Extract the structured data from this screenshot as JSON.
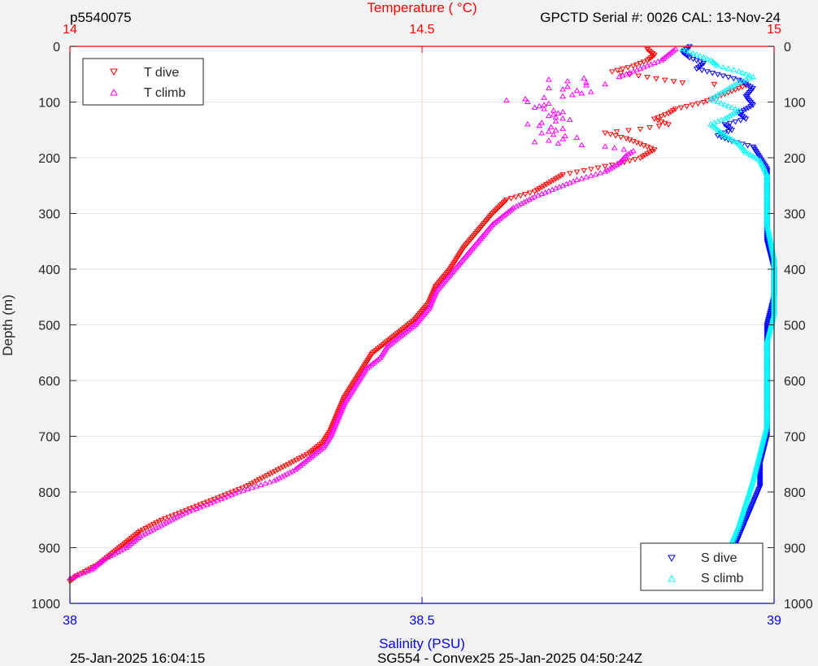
{
  "header": {
    "left": "p5540075",
    "right": "GPCTD Serial #: 0026 CAL: 13-Nov-24"
  },
  "footer": {
    "left": "25-Jan-2025 16:04:15",
    "center": "SG554 - Convex25 25-Jan-2025 04:50:24Z"
  },
  "chart_data": {
    "type": "scatter",
    "ylabel": "Depth (m)",
    "ylim": [
      0,
      1000
    ],
    "yticks": [
      "0",
      "100",
      "200",
      "300",
      "400",
      "500",
      "600",
      "700",
      "800",
      "900",
      "1000"
    ],
    "y_reversed": true,
    "temperature_axis": {
      "label": "Temperature (    °C)",
      "position": "top",
      "color": "#ff0000",
      "lim": [
        14,
        15
      ],
      "ticks": [
        "14",
        "14.5",
        "15"
      ]
    },
    "salinity_axis": {
      "label": "Salinity (PSU)",
      "position": "bottom",
      "color": "#0000ff",
      "lim": [
        38,
        39
      ],
      "ticks": [
        "38",
        "38.5",
        "39"
      ]
    },
    "grid": true,
    "legend_temperature": {
      "placement": "top-left",
      "entries": [
        "T dive",
        "T climb"
      ]
    },
    "legend_salinity": {
      "placement": "bottom-right",
      "entries": [
        "S dive",
        "S climb"
      ]
    },
    "series": [
      {
        "name": "T dive",
        "axis": "temperature",
        "marker": "triangle-down",
        "color": "#ff0000",
        "points": [
          [
            14.82,
            5
          ],
          [
            14.83,
            15
          ],
          [
            14.82,
            25
          ],
          [
            14.8,
            35
          ],
          [
            14.77,
            45
          ],
          [
            14.82,
            55
          ],
          [
            14.87,
            65
          ],
          [
            14.96,
            70
          ],
          [
            14.93,
            85
          ],
          [
            14.9,
            100
          ],
          [
            14.86,
            112
          ],
          [
            14.85,
            120
          ],
          [
            14.83,
            130
          ],
          [
            14.85,
            140
          ],
          [
            14.81,
            148
          ],
          [
            14.76,
            155
          ],
          [
            14.79,
            165
          ],
          [
            14.81,
            175
          ],
          [
            14.83,
            185
          ],
          [
            14.81,
            200
          ],
          [
            14.78,
            210
          ],
          [
            14.74,
            220
          ],
          [
            14.7,
            230
          ],
          [
            14.68,
            245
          ],
          [
            14.66,
            260
          ],
          [
            14.62,
            275
          ],
          [
            14.6,
            300
          ],
          [
            14.58,
            330
          ],
          [
            14.56,
            360
          ],
          [
            14.54,
            400
          ],
          [
            14.52,
            430
          ],
          [
            14.51,
            460
          ],
          [
            14.49,
            490
          ],
          [
            14.47,
            510
          ],
          [
            14.45,
            530
          ],
          [
            14.43,
            550
          ],
          [
            14.42,
            570
          ],
          [
            14.41,
            590
          ],
          [
            14.4,
            610
          ],
          [
            14.39,
            630
          ],
          [
            14.38,
            660
          ],
          [
            14.37,
            690
          ],
          [
            14.36,
            710
          ],
          [
            14.34,
            730
          ],
          [
            14.31,
            750
          ],
          [
            14.28,
            770
          ],
          [
            14.25,
            790
          ],
          [
            14.21,
            810
          ],
          [
            14.17,
            830
          ],
          [
            14.13,
            850
          ],
          [
            14.1,
            870
          ],
          [
            14.08,
            890
          ],
          [
            14.06,
            910
          ],
          [
            14.04,
            930
          ],
          [
            14.01,
            950
          ],
          [
            14.0,
            960
          ],
          [
            13.99,
            965
          ]
        ]
      },
      {
        "name": "T climb",
        "axis": "temperature",
        "marker": "triangle-up",
        "color": "#ff00ff",
        "points": [
          [
            14.86,
            5
          ],
          [
            14.85,
            15
          ],
          [
            14.84,
            25
          ],
          [
            14.82,
            35
          ],
          [
            14.8,
            45
          ],
          [
            14.78,
            55
          ],
          [
            14.68,
            60
          ],
          [
            14.76,
            68
          ],
          [
            14.68,
            75
          ],
          [
            14.74,
            82
          ],
          [
            14.7,
            90
          ],
          [
            14.62,
            97
          ],
          [
            14.68,
            103
          ],
          [
            14.66,
            110
          ],
          [
            14.7,
            118
          ],
          [
            14.68,
            125
          ],
          [
            14.71,
            132
          ],
          [
            14.65,
            140
          ],
          [
            14.7,
            148
          ],
          [
            14.67,
            156
          ],
          [
            14.72,
            164
          ],
          [
            14.66,
            172
          ],
          [
            14.76,
            180
          ],
          [
            14.8,
            188
          ],
          [
            14.79,
            196
          ],
          [
            14.78,
            210
          ],
          [
            14.76,
            225
          ],
          [
            14.72,
            240
          ],
          [
            14.69,
            255
          ],
          [
            14.66,
            270
          ],
          [
            14.63,
            290
          ],
          [
            14.6,
            320
          ],
          [
            14.58,
            350
          ],
          [
            14.56,
            380
          ],
          [
            14.54,
            410
          ],
          [
            14.52,
            440
          ],
          [
            14.51,
            470
          ],
          [
            14.49,
            500
          ],
          [
            14.47,
            520
          ],
          [
            14.45,
            540
          ],
          [
            14.44,
            560
          ],
          [
            14.42,
            580
          ],
          [
            14.41,
            600
          ],
          [
            14.4,
            620
          ],
          [
            14.39,
            640
          ],
          [
            14.38,
            670
          ],
          [
            14.37,
            700
          ],
          [
            14.36,
            720
          ],
          [
            14.34,
            740
          ],
          [
            14.32,
            760
          ],
          [
            14.29,
            780
          ],
          [
            14.24,
            800
          ],
          [
            14.2,
            820
          ],
          [
            14.16,
            840
          ],
          [
            14.13,
            860
          ],
          [
            14.1,
            880
          ],
          [
            14.08,
            900
          ],
          [
            14.05,
            920
          ],
          [
            14.03,
            940
          ],
          [
            14.0,
            955
          ],
          [
            13.99,
            963
          ]
        ]
      },
      {
        "name": "S dive",
        "axis": "salinity",
        "marker": "triangle-down",
        "color": "#0000ff",
        "points": [
          [
            38.88,
            0
          ],
          [
            38.87,
            10
          ],
          [
            38.88,
            20
          ],
          [
            38.9,
            30
          ],
          [
            38.89,
            40
          ],
          [
            38.92,
            50
          ],
          [
            38.95,
            60
          ],
          [
            38.97,
            75
          ],
          [
            38.96,
            90
          ],
          [
            38.97,
            105
          ],
          [
            38.95,
            120
          ],
          [
            38.96,
            130
          ],
          [
            38.93,
            140
          ],
          [
            38.94,
            150
          ],
          [
            38.92,
            160
          ],
          [
            38.94,
            170
          ],
          [
            38.97,
            180
          ],
          [
            38.98,
            200
          ],
          [
            38.99,
            220
          ],
          [
            38.99,
            260
          ],
          [
            38.99,
            300
          ],
          [
            38.99,
            350
          ],
          [
            39.0,
            400
          ],
          [
            39.0,
            450
          ],
          [
            38.99,
            500
          ],
          [
            38.99,
            550
          ],
          [
            38.99,
            600
          ],
          [
            38.99,
            650
          ],
          [
            38.99,
            700
          ],
          [
            38.98,
            750
          ],
          [
            38.98,
            790
          ],
          [
            38.97,
            820
          ],
          [
            38.96,
            850
          ],
          [
            38.95,
            880
          ],
          [
            38.94,
            910
          ],
          [
            38.93,
            935
          ],
          [
            38.93,
            955
          ],
          [
            38.92,
            965
          ]
        ]
      },
      {
        "name": "S climb",
        "axis": "salinity",
        "marker": "triangle-up",
        "color": "#00ffff",
        "points": [
          [
            38.87,
            5
          ],
          [
            38.89,
            15
          ],
          [
            38.91,
            25
          ],
          [
            38.92,
            35
          ],
          [
            38.95,
            45
          ],
          [
            38.97,
            55
          ],
          [
            38.95,
            65
          ],
          [
            38.93,
            80
          ],
          [
            38.91,
            95
          ],
          [
            38.93,
            105
          ],
          [
            38.95,
            115
          ],
          [
            38.93,
            130
          ],
          [
            38.91,
            140
          ],
          [
            38.92,
            150
          ],
          [
            38.93,
            160
          ],
          [
            38.95,
            175
          ],
          [
            38.96,
            190
          ],
          [
            38.98,
            205
          ],
          [
            38.99,
            230
          ],
          [
            38.99,
            270
          ],
          [
            38.99,
            320
          ],
          [
            39.0,
            380
          ],
          [
            39.0,
            430
          ],
          [
            39.0,
            480
          ],
          [
            38.99,
            530
          ],
          [
            38.99,
            580
          ],
          [
            38.99,
            630
          ],
          [
            38.99,
            680
          ],
          [
            38.98,
            730
          ],
          [
            38.97,
            780
          ],
          [
            38.96,
            820
          ],
          [
            38.95,
            860
          ],
          [
            38.94,
            890
          ],
          [
            38.93,
            920
          ],
          [
            38.93,
            945
          ],
          [
            38.92,
            960
          ]
        ]
      }
    ]
  },
  "colors": {
    "background": "#f2f2f2",
    "plot_area": "#ffffff",
    "axis": "#262626",
    "grid": "#e6e6e6",
    "center_grid": "#f5c8c8"
  }
}
